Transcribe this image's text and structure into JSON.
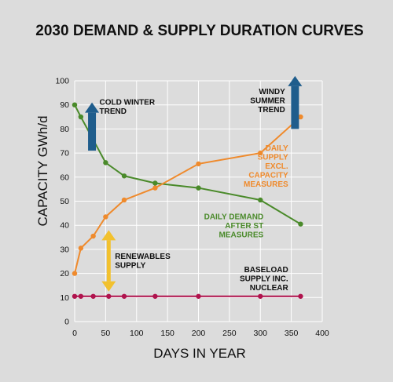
{
  "chart_data": {
    "type": "line",
    "title": "2030 DEMAND & SUPPLY DURATION CURVES",
    "xlabel": "DAYS IN YEAR",
    "ylabel": "CAPACITY GWh/d",
    "xlim": [
      0,
      400
    ],
    "ylim": [
      0,
      100
    ],
    "x_ticks": [
      0,
      50,
      100,
      150,
      200,
      250,
      300,
      350,
      400
    ],
    "y_ticks": [
      0,
      10,
      20,
      30,
      40,
      50,
      60,
      70,
      80,
      90,
      100
    ],
    "grid": true,
    "legend": "none",
    "series": [
      {
        "name": "DAILY DEMAND AFTER ST MEASURES",
        "color": "#4a8a2a",
        "x": [
          0,
          10,
          50,
          80,
          130,
          200,
          300,
          365
        ],
        "y": [
          90,
          85,
          66,
          60.5,
          57.5,
          55.5,
          50.5,
          40.5
        ]
      },
      {
        "name": "DAILY SUPPLY EXCL. CAPACITY MEASURES",
        "color": "#ef8a2c",
        "x": [
          0,
          10,
          30,
          50,
          80,
          130,
          200,
          300,
          365
        ],
        "y": [
          20,
          30.5,
          35.5,
          43.5,
          50.5,
          55.5,
          65.5,
          70,
          85
        ]
      },
      {
        "name": "BASELOAD SUPPLY INC. NUCLEAR",
        "color": "#b0134d",
        "x": [
          0,
          10,
          30,
          55,
          80,
          130,
          200,
          300,
          365
        ],
        "y": [
          10.5,
          10.5,
          10.5,
          10.5,
          10.5,
          10.5,
          10.5,
          10.5,
          10.5
        ]
      }
    ],
    "annotations": [
      {
        "lines": [
          "COLD WINTER",
          "TREND"
        ],
        "color": "#111111",
        "x": 40,
        "y": 90,
        "anchor": "start"
      },
      {
        "lines": [
          "WINDY",
          "SUMMER",
          "TREND"
        ],
        "color": "#111111",
        "x": 340,
        "y": 94.5,
        "anchor": "end"
      },
      {
        "lines": [
          "DAILY",
          "SUPPLY",
          "EXCL.",
          "CAPACITY",
          "MEASURES"
        ],
        "color": "#ef8a2c",
        "x": 345,
        "y": 71,
        "anchor": "end"
      },
      {
        "lines": [
          "DAILY DEMAND",
          "AFTER ST",
          "MEASURES"
        ],
        "color": "#4a8a2a",
        "x": 305,
        "y": 42.5,
        "anchor": "end"
      },
      {
        "lines": [
          "RENEWABLES",
          "SUPPLY"
        ],
        "color": "#111111",
        "x": 65,
        "y": 26,
        "anchor": "start"
      },
      {
        "lines": [
          "BASELOAD",
          "SUPPLY INC.",
          "NUCLEAR"
        ],
        "color": "#111111",
        "x": 345,
        "y": 20.5,
        "anchor": "end"
      }
    ],
    "arrows": [
      {
        "name": "cold-winter-trend-arrow",
        "direction": "up",
        "x": 28,
        "y_from": 71,
        "y_to": 91,
        "color": "#1f5d8c"
      },
      {
        "name": "windy-summer-trend-arrow",
        "direction": "up",
        "x": 356,
        "y_from": 80,
        "y_to": 102,
        "color": "#1f5d8c"
      },
      {
        "name": "renewables-supply-arrow",
        "direction": "both",
        "x": 55,
        "y_from": 12.5,
        "y_to": 38,
        "color": "#f2c12e"
      }
    ]
  }
}
